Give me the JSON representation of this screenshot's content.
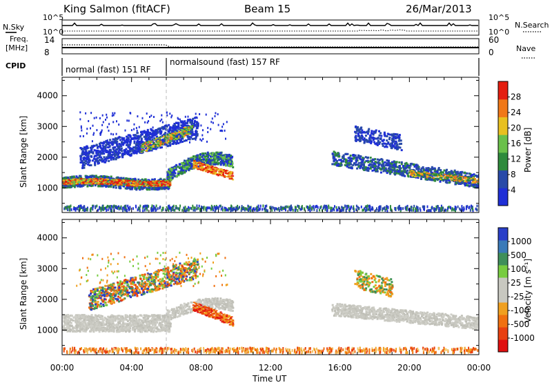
{
  "header": {
    "title": "King Salmon (fitACF)",
    "beam": "Beam 15",
    "date": "26/Mar/2013"
  },
  "top_panels": {
    "sky_label": "N.Sky",
    "search_label": "N.Search",
    "sky_ticks": [
      "10^5",
      "10^0"
    ],
    "search_ticks": [
      "10^5",
      "10^0"
    ],
    "freq_label": "Freq.",
    "freq_unit": "[MHz]",
    "freq_ticks": [
      "14",
      "8"
    ],
    "nave_label": "Nave",
    "nave_ticks": [
      "60",
      "0"
    ],
    "cpid_label": "CPID",
    "cpid_segments": [
      "normal (fast) 151 RF",
      "normalsound (fast) 157 RF"
    ]
  },
  "chart_data": [
    {
      "type": "heatmap",
      "panel": "power",
      "ylabel": "Slant Range [km]",
      "y_ticks": [
        "1000",
        "2000",
        "3000",
        "4000"
      ],
      "ylim": [
        200,
        4600
      ],
      "colorbar_label": "Power [dB]",
      "colorbar_ticks": [
        "4",
        "8",
        "12",
        "16",
        "20",
        "24",
        "28"
      ],
      "colorbar_colors": [
        "#1f2fd6",
        "#284aa8",
        "#2e8a3c",
        "#6ac04a",
        "#e8c020",
        "#f07818",
        "#e41e10"
      ],
      "features": [
        {
          "x": [
            0,
            10
          ],
          "y": [
            1000,
            1500
          ],
          "level": "high"
        },
        {
          "x": [
            1,
            7.5
          ],
          "y": [
            1700,
            3100
          ],
          "level": "medium"
        },
        {
          "x": [
            6,
            10
          ],
          "y": [
            1000,
            2100
          ],
          "level": "high"
        },
        {
          "x": [
            15.5,
            24
          ],
          "y": [
            1000,
            2000
          ],
          "level": "medium"
        },
        {
          "x": [
            16.8,
            19
          ],
          "y": [
            2300,
            3300
          ],
          "level": "low"
        }
      ]
    },
    {
      "type": "heatmap",
      "panel": "velocity",
      "ylabel": "Slant Range [km]",
      "y_ticks": [
        "1000",
        "2000",
        "3000",
        "4000"
      ],
      "ylim": [
        200,
        4600
      ],
      "colorbar_label": "Velocity [m s⁻¹]",
      "colorbar_ticks": [
        "1000",
        "500",
        "100",
        "25",
        "-25",
        "-100",
        "-500",
        "-1000"
      ],
      "colorbar_colors": [
        "#2a3fc8",
        "#3a7ab8",
        "#3f8f5a",
        "#78cc40",
        "#c8c8c0",
        "#c8c8c0",
        "#f0a020",
        "#f07010",
        "#e84010",
        "#e01010"
      ],
      "x_ticks": [
        "00:00",
        "04:00",
        "08:00",
        "12:00",
        "16:00",
        "20:00",
        "00:00"
      ],
      "xlabel": "Time UT"
    }
  ]
}
